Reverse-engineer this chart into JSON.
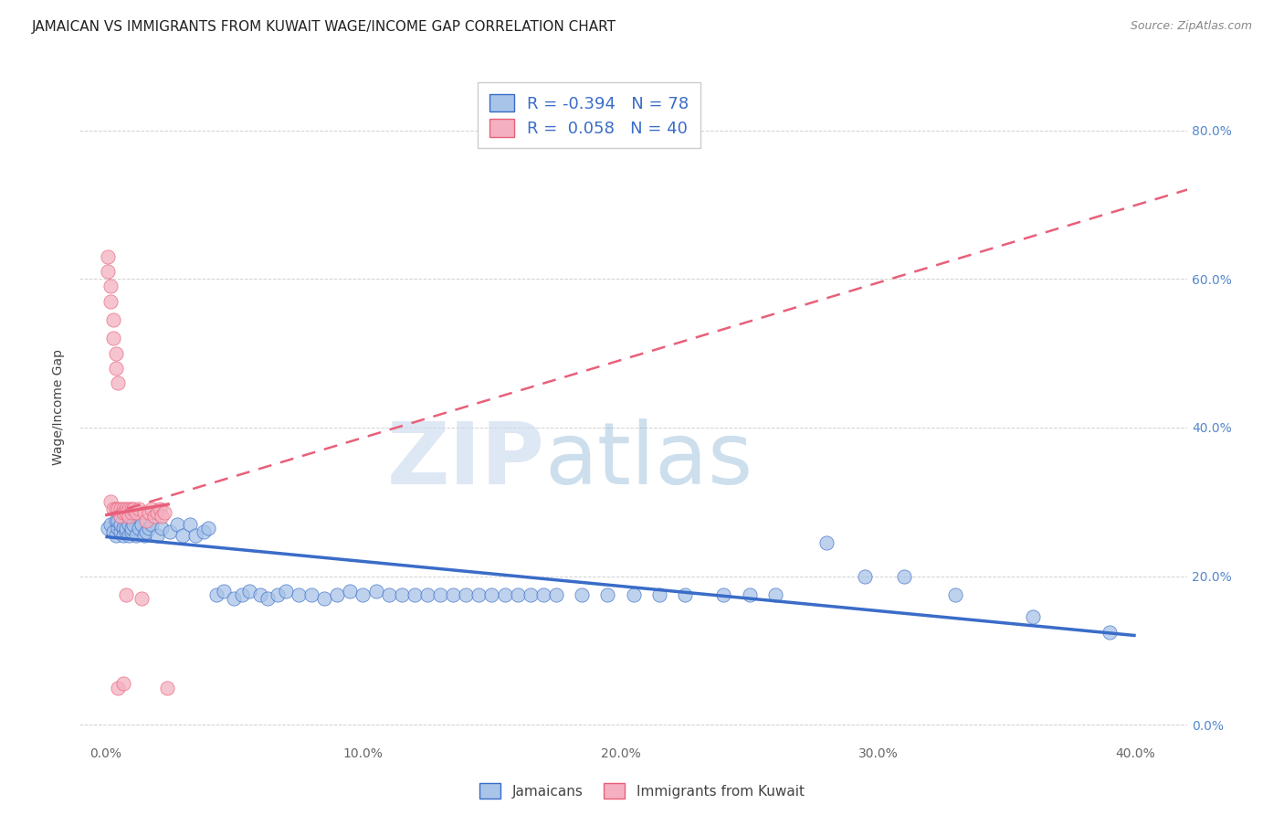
{
  "title": "JAMAICAN VS IMMIGRANTS FROM KUWAIT WAGE/INCOME GAP CORRELATION CHART",
  "source": "Source: ZipAtlas.com",
  "xlabel_ticks": [
    "0.0%",
    "10.0%",
    "20.0%",
    "30.0%",
    "40.0%"
  ],
  "xlabel_vals": [
    0.0,
    0.1,
    0.2,
    0.3,
    0.4
  ],
  "ylabel_ticks": [
    "0.0%",
    "20.0%",
    "40.0%",
    "60.0%",
    "80.0%"
  ],
  "ylabel_vals": [
    0.0,
    0.2,
    0.4,
    0.6,
    0.8
  ],
  "xlim": [
    -0.01,
    0.42
  ],
  "ylim": [
    -0.025,
    0.88
  ],
  "blue_R": -0.394,
  "blue_N": 78,
  "pink_R": 0.058,
  "pink_N": 40,
  "blue_color": "#a8c4e8",
  "pink_color": "#f4b0c0",
  "blue_line_color": "#3a6cc8",
  "pink_line_color": "#e8607a",
  "legend_label_blue": "Jamaicans",
  "legend_label_pink": "Immigrants from Kuwait",
  "watermark_zip": "ZIP",
  "watermark_atlas": "atlas",
  "blue_scatter_x": [
    0.001,
    0.002,
    0.003,
    0.004,
    0.004,
    0.005,
    0.005,
    0.006,
    0.006,
    0.007,
    0.007,
    0.008,
    0.008,
    0.009,
    0.009,
    0.01,
    0.01,
    0.011,
    0.012,
    0.013,
    0.014,
    0.015,
    0.016,
    0.017,
    0.018,
    0.02,
    0.022,
    0.025,
    0.028,
    0.03,
    0.033,
    0.035,
    0.038,
    0.04,
    0.043,
    0.046,
    0.05,
    0.053,
    0.056,
    0.06,
    0.063,
    0.067,
    0.07,
    0.075,
    0.08,
    0.085,
    0.09,
    0.095,
    0.1,
    0.105,
    0.11,
    0.115,
    0.12,
    0.125,
    0.13,
    0.135,
    0.14,
    0.145,
    0.15,
    0.155,
    0.16,
    0.165,
    0.17,
    0.175,
    0.185,
    0.195,
    0.205,
    0.215,
    0.225,
    0.24,
    0.25,
    0.26,
    0.28,
    0.295,
    0.31,
    0.33,
    0.36,
    0.39
  ],
  "blue_scatter_y": [
    0.265,
    0.27,
    0.26,
    0.275,
    0.255,
    0.265,
    0.275,
    0.26,
    0.27,
    0.265,
    0.255,
    0.26,
    0.265,
    0.27,
    0.255,
    0.26,
    0.265,
    0.27,
    0.255,
    0.265,
    0.27,
    0.255,
    0.26,
    0.265,
    0.27,
    0.255,
    0.265,
    0.26,
    0.27,
    0.255,
    0.27,
    0.255,
    0.26,
    0.265,
    0.175,
    0.18,
    0.17,
    0.175,
    0.18,
    0.175,
    0.17,
    0.175,
    0.18,
    0.175,
    0.175,
    0.17,
    0.175,
    0.18,
    0.175,
    0.18,
    0.175,
    0.175,
    0.175,
    0.175,
    0.175,
    0.175,
    0.175,
    0.175,
    0.175,
    0.175,
    0.175,
    0.175,
    0.175,
    0.175,
    0.175,
    0.175,
    0.175,
    0.175,
    0.175,
    0.175,
    0.175,
    0.175,
    0.245,
    0.2,
    0.2,
    0.175,
    0.145,
    0.125
  ],
  "pink_scatter_x": [
    0.001,
    0.001,
    0.002,
    0.002,
    0.002,
    0.003,
    0.003,
    0.003,
    0.004,
    0.004,
    0.004,
    0.005,
    0.005,
    0.005,
    0.006,
    0.006,
    0.007,
    0.007,
    0.007,
    0.008,
    0.008,
    0.008,
    0.009,
    0.009,
    0.01,
    0.01,
    0.011,
    0.012,
    0.013,
    0.014,
    0.015,
    0.016,
    0.017,
    0.018,
    0.019,
    0.02,
    0.021,
    0.022,
    0.023,
    0.024
  ],
  "pink_scatter_y": [
    0.63,
    0.61,
    0.59,
    0.57,
    0.3,
    0.545,
    0.52,
    0.29,
    0.5,
    0.48,
    0.29,
    0.46,
    0.29,
    0.05,
    0.29,
    0.28,
    0.29,
    0.285,
    0.055,
    0.29,
    0.285,
    0.175,
    0.29,
    0.28,
    0.29,
    0.285,
    0.29,
    0.285,
    0.29,
    0.17,
    0.285,
    0.275,
    0.285,
    0.29,
    0.28,
    0.285,
    0.29,
    0.28,
    0.285,
    0.05
  ],
  "blue_line_x": [
    0.0,
    0.4
  ],
  "blue_line_y": [
    0.253,
    0.12
  ],
  "pink_line_x": [
    0.0,
    0.42
  ],
  "pink_line_y": [
    0.282,
    0.72
  ]
}
